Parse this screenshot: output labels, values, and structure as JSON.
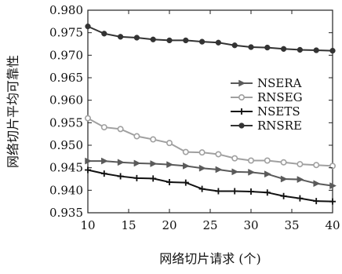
{
  "chart_data": {
    "type": "line",
    "title": "",
    "xlabel": "网络切片请求 (个)",
    "ylabel": "网络切片平均可靠性",
    "xlim": [
      10,
      40
    ],
    "ylim": [
      0.935,
      0.98
    ],
    "x_ticks": [
      10,
      15,
      20,
      25,
      30,
      35,
      40
    ],
    "y_ticks": [
      0.935,
      0.94,
      0.945,
      0.95,
      0.955,
      0.96,
      0.965,
      0.97,
      0.975,
      0.98
    ],
    "x_tick_labels": [
      "10",
      "15",
      "20",
      "25",
      "30",
      "35",
      "40"
    ],
    "y_tick_labels": [
      "0.935",
      "0.940",
      "0.945",
      "0.950",
      "0.955",
      "0.960",
      "0.965",
      "0.970",
      "0.975",
      "0.980"
    ],
    "grid": false,
    "legend_position": "right-middle",
    "x": [
      10,
      12,
      14,
      16,
      18,
      20,
      22,
      24,
      26,
      28,
      30,
      32,
      34,
      36,
      38,
      40
    ],
    "series": [
      {
        "name": "NSERA",
        "marker": "triangle-right",
        "color": "#5a5a5a",
        "values": [
          0.9465,
          0.9465,
          0.9462,
          0.946,
          0.9459,
          0.9457,
          0.9454,
          0.9449,
          0.9446,
          0.9441,
          0.944,
          0.9436,
          0.9425,
          0.9424,
          0.9415,
          0.941
        ]
      },
      {
        "name": "RNSEG",
        "marker": "circle-open",
        "color": "#a0a0a0",
        "values": [
          0.956,
          0.954,
          0.9536,
          0.952,
          0.9513,
          0.9505,
          0.9485,
          0.9484,
          0.948,
          0.9471,
          0.9466,
          0.9466,
          0.9462,
          0.9458,
          0.9456,
          0.9454
        ]
      },
      {
        "name": "NSETS",
        "marker": "plus",
        "color": "#111111",
        "values": [
          0.9445,
          0.9437,
          0.9431,
          0.9427,
          0.9426,
          0.9418,
          0.9417,
          0.9403,
          0.9398,
          0.9398,
          0.9397,
          0.9395,
          0.9387,
          0.9382,
          0.9376,
          0.9375
        ]
      },
      {
        "name": "RNSRE",
        "marker": "circle-filled",
        "color": "#333333",
        "values": [
          0.9764,
          0.9748,
          0.9741,
          0.9739,
          0.9735,
          0.9733,
          0.9733,
          0.973,
          0.9728,
          0.9722,
          0.9718,
          0.9717,
          0.9714,
          0.9712,
          0.9711,
          0.971
        ]
      }
    ]
  }
}
